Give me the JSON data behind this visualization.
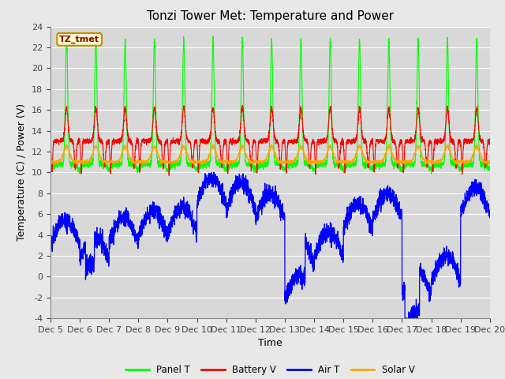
{
  "title": "Tonzi Tower Met: Temperature and Power",
  "xlabel": "Time",
  "ylabel": "Temperature (C) / Power (V)",
  "bg_color": "#e8e8e8",
  "plot_bg_color": "#d8d8d8",
  "ylim": [
    -4,
    24
  ],
  "yticks": [
    -4,
    -2,
    0,
    2,
    4,
    6,
    8,
    10,
    12,
    14,
    16,
    18,
    20,
    22,
    24
  ],
  "x_start": 5,
  "x_end": 20,
  "xtick_labels": [
    "Dec 5",
    "Dec 6",
    "Dec 7",
    "Dec 8",
    "Dec 9",
    "Dec 10",
    "Dec 11",
    "Dec 12",
    "Dec 13",
    "Dec 14",
    "Dec 15",
    "Dec 16",
    "Dec 17",
    "Dec 18",
    "Dec 19",
    "Dec 20"
  ],
  "xtick_positions": [
    5,
    6,
    7,
    8,
    9,
    10,
    11,
    12,
    13,
    14,
    15,
    16,
    17,
    18,
    19,
    20
  ],
  "legend_entries": [
    "Panel T",
    "Battery V",
    "Air T",
    "Solar V"
  ],
  "legend_colors": [
    "#00ff00",
    "#ff0000",
    "#0000ff",
    "#ffa500"
  ],
  "series_colors": [
    "#00ff00",
    "#ff0000",
    "#0000ff",
    "#ffa500"
  ],
  "annotation_text": "TZ_tmet",
  "annotation_bg": "#ffffcc",
  "annotation_border": "#cc8800",
  "title_fontsize": 11,
  "axis_fontsize": 9,
  "tick_fontsize": 8
}
